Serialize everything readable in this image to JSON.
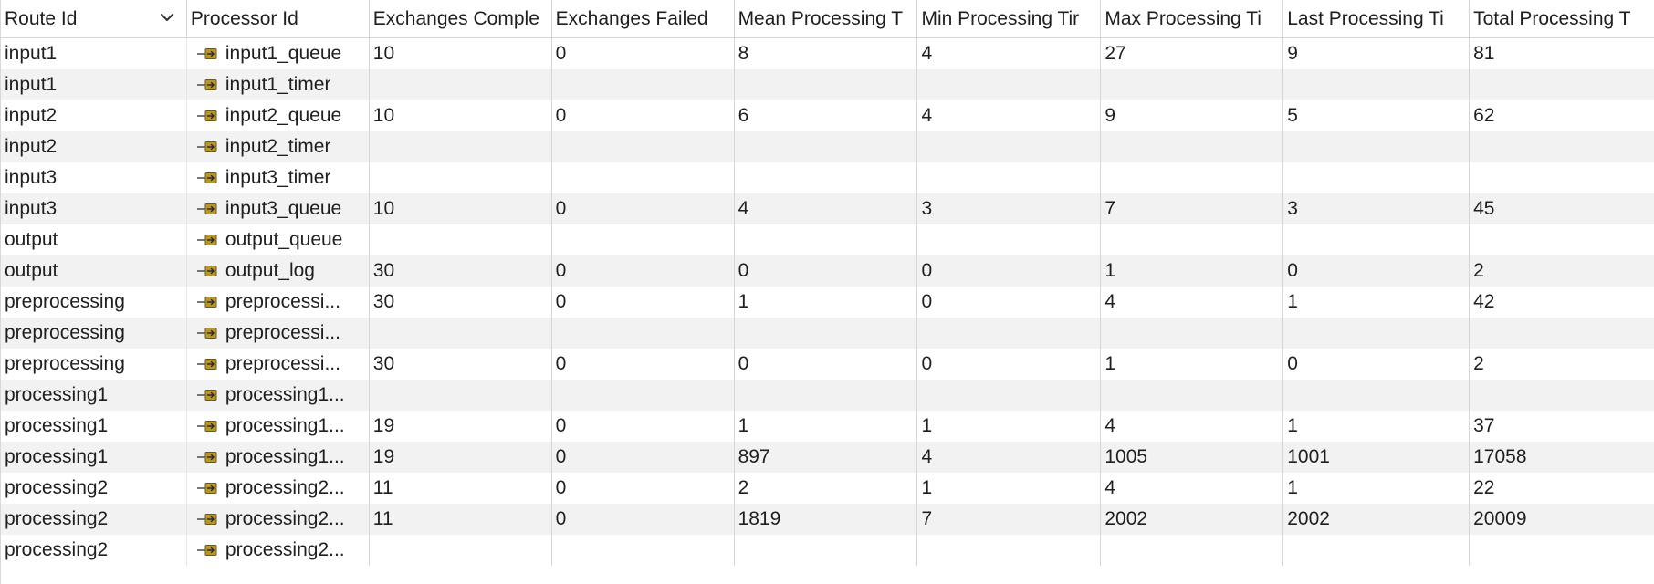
{
  "headers": [
    "Route Id",
    "Processor Id",
    "Exchanges Comple",
    "Exchanges Failed",
    "Mean Processing T",
    "Min Processing Tir",
    "Max Processing Ti",
    "Last Processing Ti",
    "Total Processing T"
  ],
  "rows": [
    [
      "input1",
      "input1_queue",
      "10",
      "0",
      "8",
      "4",
      "27",
      "9",
      "81"
    ],
    [
      "input1",
      "input1_timer",
      "",
      "",
      "",
      "",
      "",
      "",
      ""
    ],
    [
      "input2",
      "input2_queue",
      "10",
      "0",
      "6",
      "4",
      "9",
      "5",
      "62"
    ],
    [
      "input2",
      "input2_timer",
      "",
      "",
      "",
      "",
      "",
      "",
      ""
    ],
    [
      "input3",
      "input3_timer",
      "",
      "",
      "",
      "",
      "",
      "",
      ""
    ],
    [
      "input3",
      "input3_queue",
      "10",
      "0",
      "4",
      "3",
      "7",
      "3",
      "45"
    ],
    [
      "output",
      "output_queue",
      "",
      "",
      "",
      "",
      "",
      "",
      ""
    ],
    [
      "output",
      "output_log",
      "30",
      "0",
      "0",
      "0",
      "1",
      "0",
      "2"
    ],
    [
      "preprocessing",
      "preprocessi...",
      "30",
      "0",
      "1",
      "0",
      "4",
      "1",
      "42"
    ],
    [
      "preprocessing",
      "preprocessi...",
      "",
      "",
      "",
      "",
      "",
      "",
      ""
    ],
    [
      "preprocessing",
      "preprocessi...",
      "30",
      "0",
      "0",
      "0",
      "1",
      "0",
      "2"
    ],
    [
      "processing1",
      "processing1...",
      "",
      "",
      "",
      "",
      "",
      "",
      ""
    ],
    [
      "processing1",
      "processing1...",
      "19",
      "0",
      "1",
      "1",
      "4",
      "1",
      "37"
    ],
    [
      "processing1",
      "processing1...",
      "19",
      "0",
      "897",
      "4",
      "1005",
      "1001",
      "17058"
    ],
    [
      "processing2",
      "processing2...",
      "11",
      "0",
      "2",
      "1",
      "4",
      "1",
      "22"
    ],
    [
      "processing2",
      "processing2...",
      "11",
      "0",
      "1819",
      "7",
      "2002",
      "2002",
      "20009"
    ],
    [
      "processing2",
      "processing2...",
      "",
      "",
      "",
      "",
      "",
      "",
      ""
    ]
  ],
  "icons": {
    "sort": "chevron-down-icon",
    "processor": "processor-node-icon",
    "processor_color": "#b8962e"
  }
}
